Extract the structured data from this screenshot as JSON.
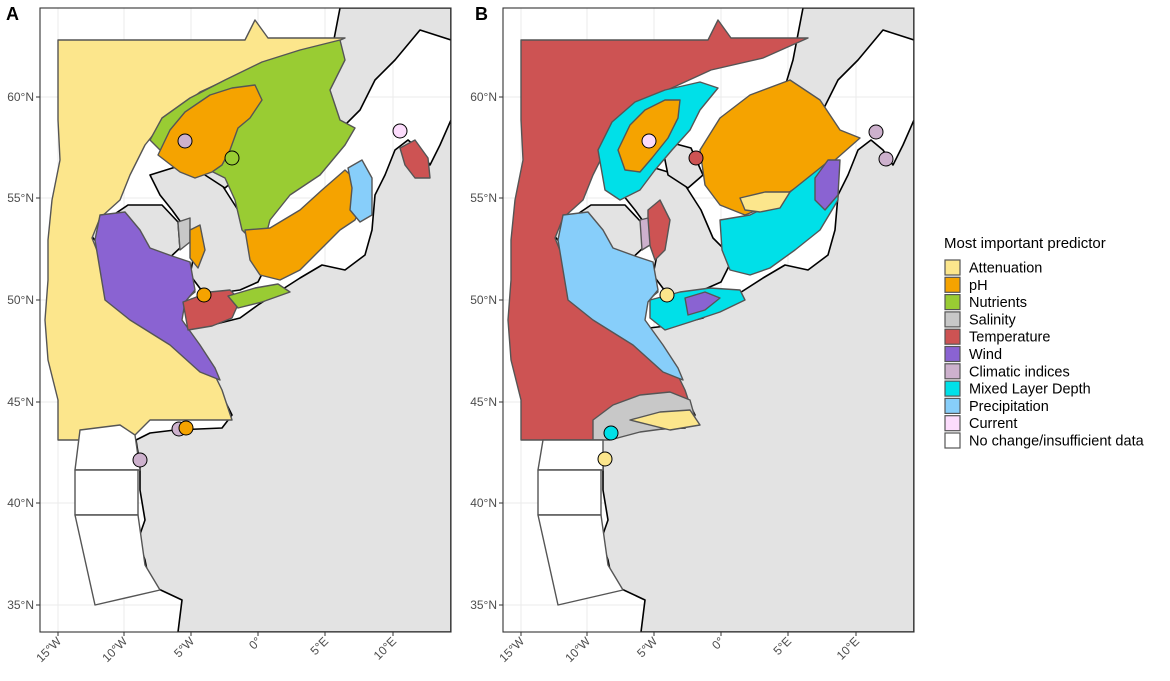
{
  "panels": [
    {
      "label": "A"
    },
    {
      "label": "B"
    }
  ],
  "axes": {
    "x_ticks": [
      "15°W",
      "10°W",
      "5°W",
      "0°",
      "5°E",
      "10°E"
    ],
    "y_ticks": [
      "60°N",
      "55°N",
      "50°N",
      "45°N",
      "40°N",
      "35°N"
    ]
  },
  "legend": {
    "title": "Most important predictor",
    "items": [
      {
        "key": "attenuation",
        "label": "Attenuation",
        "color": "#fce68c"
      },
      {
        "key": "ph",
        "label": "pH",
        "color": "#f5a300"
      },
      {
        "key": "nutrients",
        "label": "Nutrients",
        "color": "#99cc33"
      },
      {
        "key": "salinity",
        "label": "Salinity",
        "color": "#c8c8c8"
      },
      {
        "key": "temperature",
        "label": "Temperature",
        "color": "#cd5353"
      },
      {
        "key": "wind",
        "label": "Wind",
        "color": "#8a63d2"
      },
      {
        "key": "climatic",
        "label": "Climatic indices",
        "color": "#cdb1cd"
      },
      {
        "key": "mld",
        "label": "Mixed Layer Depth",
        "color": "#00e0e8"
      },
      {
        "key": "precip",
        "label": "Precipitation",
        "color": "#87cefa"
      },
      {
        "key": "current",
        "label": "Current",
        "color": "#fcdcfc"
      },
      {
        "key": "nochange",
        "label": "No change/insufficient data",
        "color": "#ffffff"
      }
    ]
  }
}
